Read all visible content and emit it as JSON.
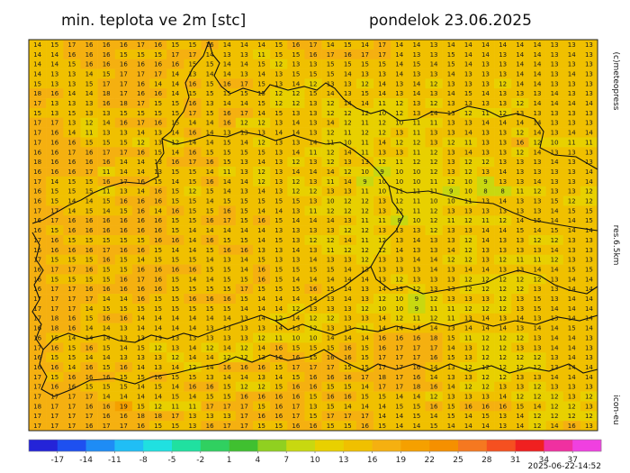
{
  "title": "min. teplota ve 2m [stc]",
  "date_label": "pondelok 23.06.2025",
  "credits": "(c)meteopress",
  "resolution": "res.6.5km",
  "model": "icon-eu",
  "run": "2025-06-22-14:52",
  "grid": [
    [
      14,
      15,
      17,
      16,
      16,
      16,
      17,
      16,
      15,
      15,
      16,
      14,
      14,
      14,
      15,
      16,
      17,
      14,
      15,
      14,
      17,
      14,
      14,
      13,
      14,
      14,
      14,
      14,
      14,
      14,
      13,
      13,
      13
    ],
    [
      14,
      14,
      16,
      16,
      16,
      15,
      15,
      15,
      17,
      17,
      14,
      13,
      13,
      11,
      15,
      15,
      16,
      17,
      16,
      17,
      17,
      14,
      13,
      13,
      15,
      14,
      14,
      13,
      14,
      14,
      13,
      14,
      13
    ],
    [
      14,
      14,
      15,
      16,
      16,
      16,
      16,
      16,
      16,
      15,
      15,
      14,
      14,
      15,
      12,
      13,
      13,
      15,
      15,
      15,
      15,
      14,
      15,
      14,
      15,
      14,
      13,
      13,
      14,
      14,
      13,
      13,
      13
    ],
    [
      14,
      13,
      13,
      14,
      15,
      17,
      17,
      17,
      14,
      13,
      14,
      14,
      13,
      14,
      13,
      15,
      15,
      15,
      14,
      13,
      13,
      14,
      13,
      13,
      14,
      13,
      13,
      13,
      14,
      14,
      13,
      14,
      13
    ],
    [
      15,
      13,
      13,
      15,
      17,
      17,
      16,
      14,
      14,
      16,
      15,
      16,
      17,
      15,
      13,
      14,
      12,
      13,
      13,
      12,
      14,
      13,
      14,
      12,
      13,
      13,
      13,
      12,
      14,
      14,
      13,
      13,
      13
    ],
    [
      18,
      16,
      14,
      14,
      18,
      17,
      16,
      16,
      14,
      15,
      15,
      15,
      15,
      15,
      12,
      12,
      15,
      14,
      13,
      15,
      14,
      13,
      14,
      13,
      14,
      15,
      14,
      13,
      13,
      13,
      14,
      13,
      13
    ],
    [
      17,
      13,
      13,
      13,
      16,
      18,
      17,
      15,
      15,
      16,
      13,
      14,
      14,
      15,
      12,
      12,
      13,
      12,
      14,
      14,
      11,
      12,
      13,
      12,
      13,
      13,
      13,
      13,
      12,
      14,
      14,
      14,
      14
    ],
    [
      15,
      13,
      15,
      13,
      13,
      15,
      15,
      15,
      15,
      17,
      15,
      16,
      17,
      14,
      15,
      13,
      13,
      12,
      12,
      12,
      10,
      12,
      13,
      14,
      13,
      12,
      11,
      12,
      13,
      13,
      13,
      13,
      13
    ],
    [
      17,
      17,
      13,
      12,
      14,
      16,
      17,
      16,
      15,
      14,
      14,
      16,
      12,
      12,
      13,
      14,
      13,
      14,
      12,
      11,
      12,
      10,
      11,
      11,
      13,
      13,
      14,
      14,
      14,
      14,
      13,
      13,
      13
    ],
    [
      17,
      16,
      14,
      11,
      13,
      13,
      14,
      13,
      14,
      16,
      14,
      13,
      13,
      13,
      14,
      14,
      13,
      12,
      11,
      12,
      12,
      13,
      11,
      13,
      13,
      14,
      13,
      13,
      12,
      14,
      13,
      14,
      14
    ],
    [
      17,
      16,
      16,
      15,
      15,
      15,
      12,
      13,
      12,
      14,
      14,
      15,
      14,
      12,
      13,
      13,
      14,
      11,
      10,
      11,
      14,
      12,
      12,
      13,
      12,
      11,
      13,
      13,
      16,
      12,
      10,
      11,
      11
    ],
    [
      16,
      16,
      17,
      16,
      17,
      17,
      16,
      15,
      14,
      16,
      15,
      15,
      15,
      15,
      13,
      14,
      11,
      12,
      14,
      11,
      13,
      13,
      11,
      12,
      13,
      14,
      13,
      13,
      12,
      14,
      13,
      13,
      13
    ],
    [
      18,
      16,
      16,
      16,
      16,
      14,
      14,
      13,
      16,
      17,
      16,
      15,
      13,
      14,
      13,
      12,
      13,
      12,
      13,
      13,
      12,
      11,
      12,
      12,
      13,
      12,
      12,
      13,
      13,
      13,
      14,
      13,
      13
    ],
    [
      16,
      16,
      16,
      17,
      11,
      14,
      14,
      13,
      15,
      15,
      14,
      11,
      13,
      12,
      13,
      14,
      14,
      14,
      12,
      10,
      9,
      10,
      10,
      12,
      13,
      12,
      13,
      14,
      13,
      13,
      13,
      13,
      14
    ],
    [
      17,
      14,
      15,
      15,
      16,
      17,
      16,
      15,
      14,
      15,
      16,
      14,
      14,
      12,
      13,
      12,
      13,
      11,
      14,
      9,
      10,
      10,
      10,
      11,
      12,
      10,
      9,
      13,
      13,
      14,
      13,
      13,
      14
    ],
    [
      16,
      15,
      15,
      15,
      11,
      13,
      14,
      16,
      15,
      12,
      15,
      14,
      13,
      14,
      13,
      12,
      12,
      13,
      13,
      11,
      10,
      11,
      11,
      11,
      9,
      10,
      8,
      8,
      11,
      12,
      13,
      13,
      12
    ],
    [
      16,
      15,
      14,
      14,
      15,
      16,
      16,
      16,
      15,
      15,
      14,
      15,
      15,
      15,
      15,
      15,
      13,
      10,
      12,
      12,
      13,
      12,
      11,
      10,
      10,
      11,
      13,
      14,
      13,
      13,
      15,
      12,
      12
    ],
    [
      17,
      17,
      14,
      15,
      14,
      15,
      16,
      14,
      16,
      15,
      15,
      16,
      15,
      14,
      14,
      13,
      11,
      12,
      12,
      12,
      13,
      12,
      11,
      12,
      13,
      13,
      13,
      13,
      13,
      13,
      14,
      15,
      15
    ],
    [
      16,
      17,
      16,
      16,
      16,
      16,
      16,
      16,
      15,
      15,
      16,
      17,
      15,
      16,
      15,
      14,
      14,
      14,
      13,
      11,
      11,
      8,
      10,
      12,
      11,
      12,
      11,
      12,
      14,
      15,
      14,
      14,
      15
    ],
    [
      16,
      15,
      16,
      16,
      16,
      16,
      16,
      16,
      15,
      14,
      14,
      14,
      14,
      14,
      13,
      13,
      13,
      13,
      12,
      12,
      13,
      13,
      13,
      12,
      13,
      13,
      14,
      14,
      15,
      14,
      15,
      14,
      14
    ],
    [
      17,
      16,
      15,
      15,
      15,
      15,
      15,
      16,
      16,
      14,
      16,
      15,
      15,
      14,
      15,
      13,
      12,
      12,
      14,
      11,
      12,
      13,
      14,
      13,
      13,
      12,
      14,
      13,
      13,
      12,
      12,
      13,
      13
    ],
    [
      16,
      16,
      16,
      16,
      17,
      16,
      16,
      15,
      14,
      14,
      15,
      16,
      16,
      13,
      13,
      14,
      13,
      11,
      12,
      12,
      12,
      14,
      13,
      13,
      14,
      12,
      13,
      13,
      13,
      13,
      14,
      13,
      13
    ],
    [
      17,
      15,
      15,
      15,
      16,
      15,
      14,
      15,
      15,
      15,
      14,
      13,
      14,
      15,
      13,
      13,
      14,
      13,
      13,
      12,
      13,
      13,
      14,
      14,
      12,
      12,
      13,
      12,
      11,
      11,
      12,
      13,
      13
    ],
    [
      16,
      17,
      17,
      16,
      15,
      15,
      16,
      16,
      16,
      16,
      15,
      15,
      14,
      16,
      15,
      15,
      15,
      15,
      14,
      13,
      13,
      13,
      13,
      14,
      13,
      14,
      14,
      13,
      13,
      14,
      14,
      15,
      15
    ],
    [
      16,
      15,
      15,
      15,
      15,
      16,
      17,
      16,
      15,
      14,
      14,
      15,
      15,
      16,
      15,
      14,
      14,
      14,
      14,
      14,
      13,
      12,
      13,
      13,
      13,
      12,
      12,
      12,
      12,
      12,
      13,
      14,
      14
    ],
    [
      16,
      17,
      17,
      16,
      16,
      16,
      16,
      16,
      15,
      15,
      15,
      15,
      17,
      15,
      15,
      15,
      16,
      15,
      14,
      13,
      14,
      13,
      12,
      13,
      13,
      12,
      12,
      12,
      12,
      13,
      13,
      14,
      14
    ],
    [
      17,
      17,
      17,
      17,
      14,
      14,
      16,
      15,
      15,
      16,
      16,
      16,
      15,
      14,
      14,
      14,
      14,
      13,
      14,
      13,
      12,
      10,
      9,
      12,
      13,
      13,
      13,
      12,
      13,
      15,
      13,
      14,
      14
    ],
    [
      17,
      17,
      17,
      14,
      15,
      15,
      15,
      15,
      15,
      15,
      15,
      15,
      14,
      14,
      14,
      12,
      13,
      13,
      13,
      12,
      10,
      10,
      9,
      11,
      11,
      12,
      12,
      12,
      13,
      15,
      14,
      14,
      14
    ],
    [
      17,
      18,
      16,
      15,
      16,
      16,
      14,
      14,
      14,
      14,
      14,
      14,
      13,
      14,
      12,
      14,
      12,
      12,
      13,
      13,
      14,
      12,
      11,
      12,
      11,
      13,
      14,
      13,
      14,
      13,
      13,
      14,
      14
    ],
    [
      16,
      18,
      16,
      14,
      14,
      13,
      14,
      14,
      14,
      14,
      13,
      13,
      13,
      13,
      14,
      13,
      12,
      13,
      13,
      11,
      14,
      14,
      14,
      14,
      13,
      14,
      14,
      14,
      13,
      14,
      14,
      15,
      14
    ],
    [
      16,
      15,
      14,
      14,
      14,
      13,
      13,
      13,
      13,
      13,
      13,
      13,
      13,
      12,
      11,
      10,
      10,
      14,
      14,
      14,
      16,
      16,
      16,
      18,
      15,
      11,
      12,
      12,
      12,
      13,
      14,
      14,
      13
    ],
    [
      17,
      16,
      15,
      16,
      15,
      14,
      15,
      12,
      13,
      14,
      12,
      14,
      12,
      14,
      16,
      15,
      15,
      15,
      16,
      15,
      16,
      17,
      17,
      17,
      14,
      13,
      12,
      12,
      13,
      13,
      14,
      14,
      13
    ],
    [
      16,
      15,
      15,
      14,
      14,
      13,
      13,
      13,
      12,
      14,
      14,
      12,
      12,
      13,
      16,
      16,
      15,
      16,
      16,
      15,
      17,
      17,
      17,
      16,
      15,
      13,
      12,
      12,
      12,
      12,
      13,
      14,
      13
    ],
    [
      16,
      16,
      14,
      16,
      15,
      16,
      14,
      13,
      14,
      12,
      14,
      16,
      16,
      16,
      15,
      17,
      17,
      17,
      15,
      15,
      17,
      17,
      16,
      14,
      13,
      12,
      12,
      12,
      12,
      12,
      13,
      14,
      14
    ],
    [
      17,
      15,
      16,
      16,
      16,
      15,
      15,
      16,
      15,
      15,
      13,
      14,
      14,
      13,
      14,
      15,
      16,
      16,
      16,
      17,
      18,
      17,
      16,
      14,
      13,
      13,
      12,
      12,
      13,
      13,
      14,
      14,
      14
    ],
    [
      17,
      16,
      16,
      15,
      15,
      15,
      14,
      15,
      14,
      16,
      16,
      15,
      12,
      12,
      15,
      16,
      16,
      15,
      15,
      14,
      17,
      17,
      18,
      16,
      14,
      12,
      12,
      13,
      13,
      12,
      13,
      13,
      13
    ],
    [
      17,
      17,
      17,
      17,
      14,
      14,
      14,
      14,
      15,
      14,
      15,
      15,
      16,
      16,
      16,
      16,
      15,
      16,
      16,
      15,
      15,
      14,
      14,
      12,
      13,
      13,
      13,
      14,
      12,
      12,
      12,
      13,
      12
    ],
    [
      18,
      17,
      17,
      16,
      16,
      19,
      15,
      12,
      11,
      11,
      17,
      17,
      17,
      15,
      16,
      17,
      13,
      15,
      14,
      14,
      14,
      15,
      15,
      16,
      15,
      16,
      16,
      16,
      15,
      14,
      12,
      12,
      13
    ],
    [
      17,
      17,
      17,
      17,
      16,
      16,
      18,
      18,
      17,
      13,
      13,
      13,
      17,
      16,
      16,
      17,
      15,
      17,
      17,
      17,
      14,
      14,
      15,
      14,
      15,
      14,
      15,
      13,
      14,
      12,
      12,
      12,
      12
    ],
    [
      17,
      17,
      17,
      16,
      17,
      17,
      16,
      15,
      15,
      13,
      16,
      17,
      17,
      15,
      15,
      16,
      16,
      15,
      15,
      16,
      15,
      14,
      14,
      15,
      14,
      14,
      14,
      13,
      14,
      12,
      14,
      16,
      13
    ]
  ],
  "colorbar": {
    "xlim": [
      -20,
      40
    ],
    "ticks": [
      -17,
      -14,
      -11,
      -8,
      -5,
      -2,
      1,
      4,
      7,
      10,
      13,
      16,
      19,
      22,
      25,
      28,
      31,
      34,
      37
    ],
    "colors": [
      "#2424d8",
      "#1e50f0",
      "#1e8cf5",
      "#20bef5",
      "#20e0e0",
      "#20e0a0",
      "#30d060",
      "#40c030",
      "#90d020",
      "#c8d810",
      "#e8d000",
      "#f0c000",
      "#f5b010",
      "#f5a000",
      "#f59000",
      "#f57820",
      "#f55020",
      "#f02020",
      "#f030a0",
      "#f040e0"
    ]
  }
}
